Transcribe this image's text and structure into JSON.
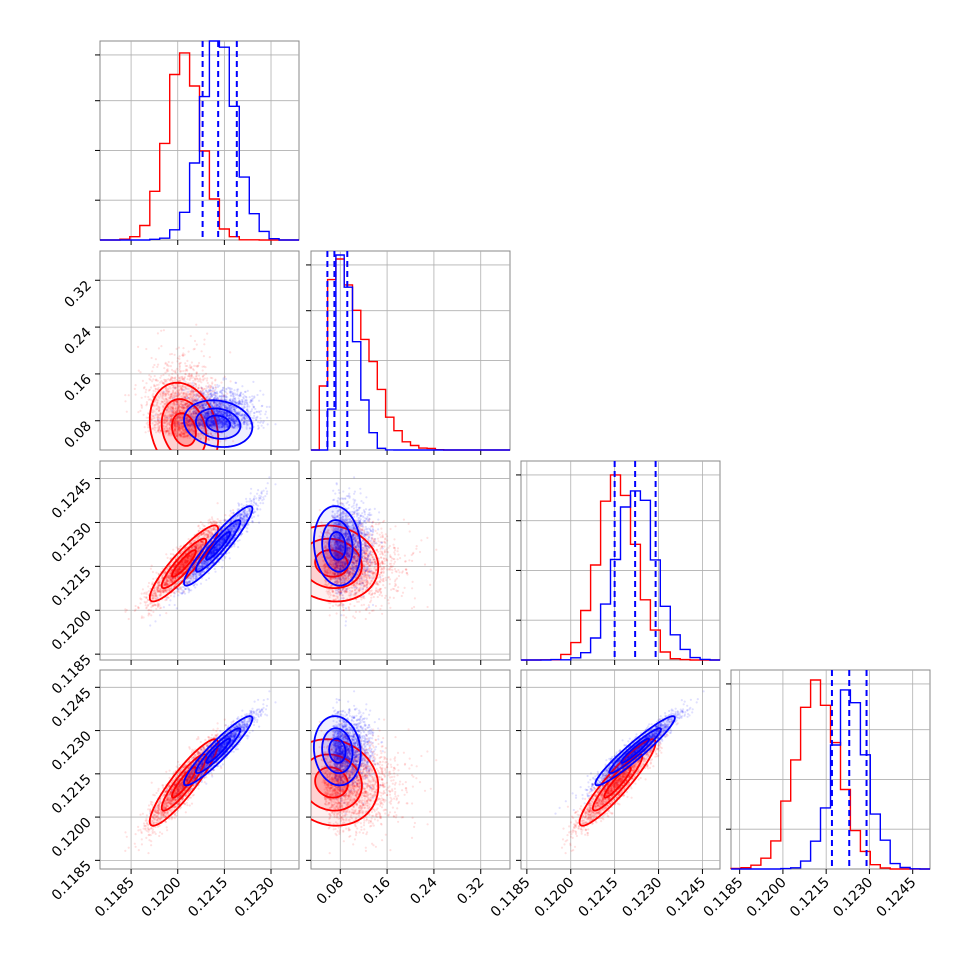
{
  "colors": {
    "red": "#ff0000",
    "blue": "#0000ff",
    "grid": "#b0b0b0",
    "axes": "#888888"
  },
  "chart_data": {
    "type": "corner",
    "n_parameters": 4,
    "axis_labels": [
      "",
      "",
      "",
      ""
    ],
    "grid": true,
    "legend": "none",
    "series": [
      {
        "color": "red",
        "means": [
          0.1202,
          0.065,
          0.1216,
          0.1212
        ],
        "sigmas": [
          0.00055,
          0.04,
          0.00065,
          0.00075
        ],
        "correlations": {
          "0-1": -0.2,
          "0-2": 0.9,
          "0-3": 0.9,
          "1-2": -0.1,
          "1-3": -0.1,
          "2-3": 0.92
        },
        "hist_peaks": [
          0.94,
          0.96,
          0.93,
          0.95
        ]
      },
      {
        "color": "blue",
        "means": [
          0.1213,
          0.075,
          0.1222,
          0.1223
        ],
        "sigmas": [
          0.00055,
          0.02,
          0.00068,
          0.0006
        ],
        "correlations": {
          "0-1": -0.15,
          "0-2": 0.93,
          "0-3": 0.93,
          "1-2": -0.1,
          "1-3": -0.1,
          "2-3": 0.95
        },
        "hist_peaks": [
          1.0,
          0.98,
          0.85,
          0.9
        ]
      }
    ],
    "quantile_lines": [
      {
        "parameter": 0,
        "color": "blue",
        "values": [
          0.1208,
          0.1213,
          0.1219
        ]
      },
      {
        "parameter": 1,
        "color": "blue",
        "values": [
          0.058,
          0.07,
          0.092
        ]
      },
      {
        "parameter": 2,
        "color": "blue",
        "values": [
          0.1215,
          0.1222,
          0.1229
        ]
      },
      {
        "parameter": 3,
        "color": "blue",
        "values": [
          0.1217,
          0.1223,
          0.1229
        ]
      }
    ],
    "axes": {
      "p0": {
        "range": [
          0.1175,
          0.1239
        ],
        "ticks": [
          0.1185,
          0.12,
          0.1215,
          0.123
        ],
        "tick_labels": [
          "0.1185",
          "0.1200",
          "0.1215",
          "0.1230"
        ]
      },
      "p1": {
        "range": [
          0.03,
          0.37
        ],
        "ticks": [
          0.08,
          0.16,
          0.24,
          0.32
        ],
        "tick_labels": [
          "0.08",
          "0.16",
          "0.24",
          "0.32"
        ]
      },
      "p2": {
        "range": [
          0.1183,
          0.1251
        ],
        "ticks": [
          0.1185,
          0.12,
          0.1215,
          0.123,
          0.1245
        ],
        "tick_labels": [
          "0.1185",
          "0.1200",
          "0.1215",
          "0.1230",
          "0.1245"
        ]
      },
      "p3": {
        "range": [
          0.1182,
          0.1251
        ],
        "ticks": [
          0.1185,
          0.12,
          0.1215,
          0.123,
          0.1245
        ],
        "tick_labels": [
          "0.1185",
          "0.1200",
          "0.1215",
          "0.1230",
          "0.1245"
        ]
      }
    }
  }
}
